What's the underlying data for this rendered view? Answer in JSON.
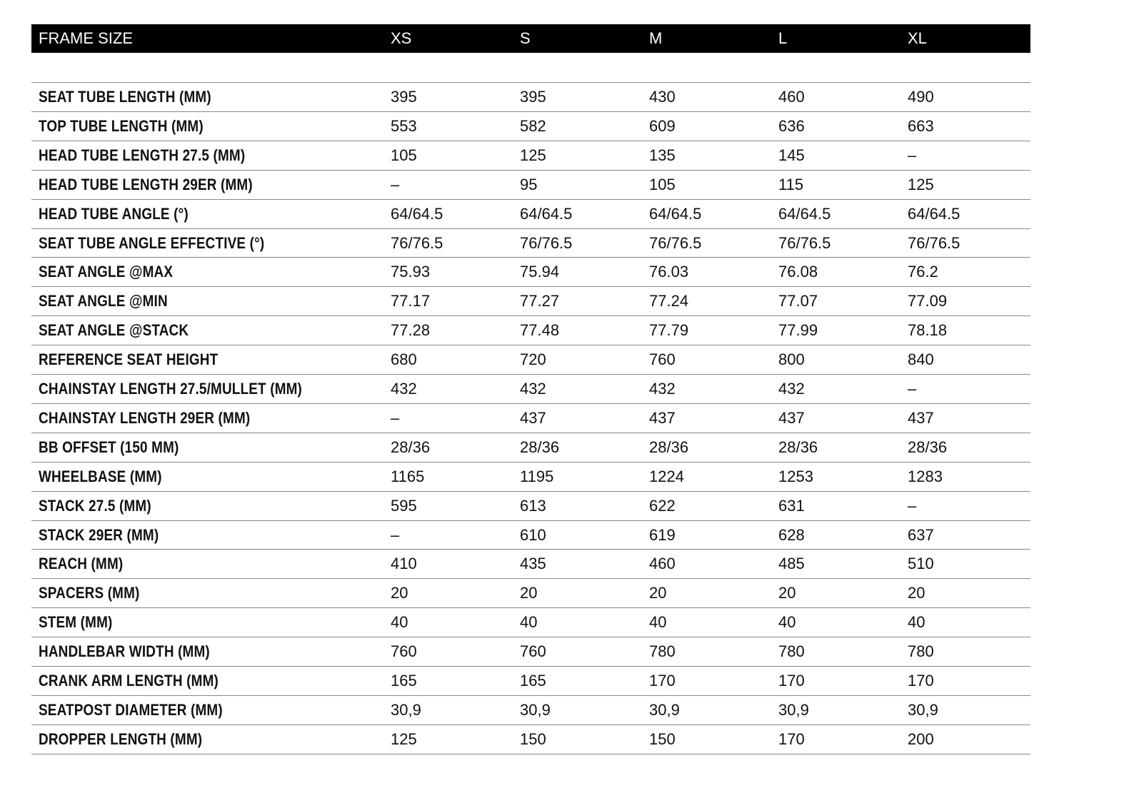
{
  "table": {
    "header": [
      "FRAME SIZE",
      "XS",
      "S",
      "M",
      "L",
      "XL"
    ],
    "rows": [
      [
        "SEAT TUBE LENGTH (MM)",
        "395",
        "395",
        "430",
        "460",
        "490"
      ],
      [
        "TOP TUBE LENGTH (MM)",
        "553",
        "582",
        "609",
        "636",
        "663"
      ],
      [
        "HEAD TUBE LENGTH 27.5 (MM)",
        "105",
        "125",
        "135",
        "145",
        "–"
      ],
      [
        "HEAD TUBE LENGTH 29ER (MM)",
        "–",
        "95",
        "105",
        "115",
        "125"
      ],
      [
        "HEAD TUBE ANGLE (°)",
        "64/64.5",
        "64/64.5",
        "64/64.5",
        "64/64.5",
        "64/64.5"
      ],
      [
        "SEAT TUBE ANGLE EFFECTIVE (°)",
        "76/76.5",
        "76/76.5",
        "76/76.5",
        "76/76.5",
        "76/76.5"
      ],
      [
        "SEAT ANGLE @MAX",
        "75.93",
        "75.94",
        "76.03",
        "76.08",
        "76.2"
      ],
      [
        "SEAT ANGLE @MIN",
        "77.17",
        "77.27",
        "77.24",
        "77.07",
        "77.09"
      ],
      [
        "SEAT ANGLE @STACK",
        "77.28",
        "77.48",
        "77.79",
        "77.99",
        "78.18"
      ],
      [
        "REFERENCE SEAT HEIGHT",
        "680",
        "720",
        "760",
        "800",
        "840"
      ],
      [
        "CHAINSTAY LENGTH 27.5/MULLET (MM)",
        "432",
        "432",
        "432",
        "432",
        "–"
      ],
      [
        "CHAINSTAY LENGTH 29ER (MM)",
        "–",
        "437",
        "437",
        "437",
        "437"
      ],
      [
        "BB OFFSET (150 MM)",
        "28/36",
        "28/36",
        "28/36",
        "28/36",
        "28/36"
      ],
      [
        "WHEELBASE (MM)",
        "1165",
        "1195",
        "1224",
        "1253",
        "1283"
      ],
      [
        "STACK 27.5 (MM)",
        "595",
        "613",
        "622",
        "631",
        "–"
      ],
      [
        "STACK 29ER (MM)",
        "–",
        "610",
        "619",
        "628",
        "637"
      ],
      [
        "REACH (MM)",
        "410",
        "435",
        "460",
        "485",
        "510"
      ],
      [
        "SPACERS (MM)",
        "20",
        "20",
        "20",
        "20",
        "20"
      ],
      [
        "STEM (MM)",
        "40",
        "40",
        "40",
        "40",
        "40"
      ],
      [
        "HANDLEBAR WIDTH (MM)",
        "760",
        "760",
        "780",
        "780",
        "780"
      ],
      [
        "CRANK ARM LENGTH (MM)",
        "165",
        "165",
        "170",
        "170",
        "170"
      ],
      [
        "SEATPOST DIAMETER (MM)",
        "30,9",
        "30,9",
        "30,9",
        "30,9",
        "30,9"
      ],
      [
        "DROPPER LENGTH (MM)",
        "125",
        "150",
        "150",
        "170",
        "200"
      ]
    ]
  }
}
